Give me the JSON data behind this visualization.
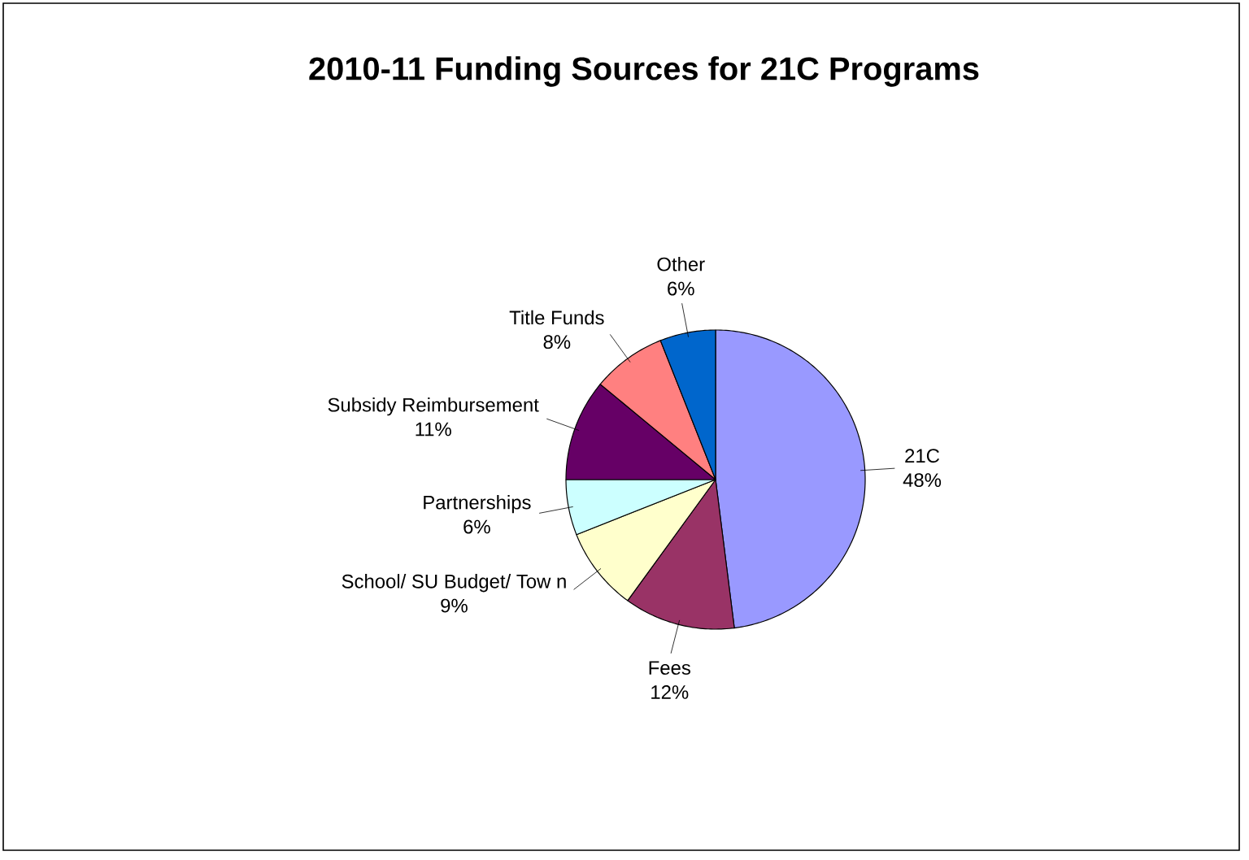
{
  "chart_data": {
    "type": "pie",
    "title": "2010-11 Funding Sources for 21C Programs",
    "categories": [
      "21C",
      "Fees",
      "School/ SU Budget/ Tow n",
      "Partnerships",
      "Subsidy Reimbursement",
      "Title Funds",
      "Other"
    ],
    "values": [
      48,
      12,
      9,
      6,
      11,
      8,
      6
    ],
    "value_labels": [
      "48%",
      "12%",
      "9%",
      "6%",
      "11%",
      "8%",
      "6%"
    ],
    "colors": [
      "#9999ff",
      "#993366",
      "#ffffcc",
      "#ccffff",
      "#660066",
      "#ff8080",
      "#0066cc"
    ],
    "legend": false
  }
}
